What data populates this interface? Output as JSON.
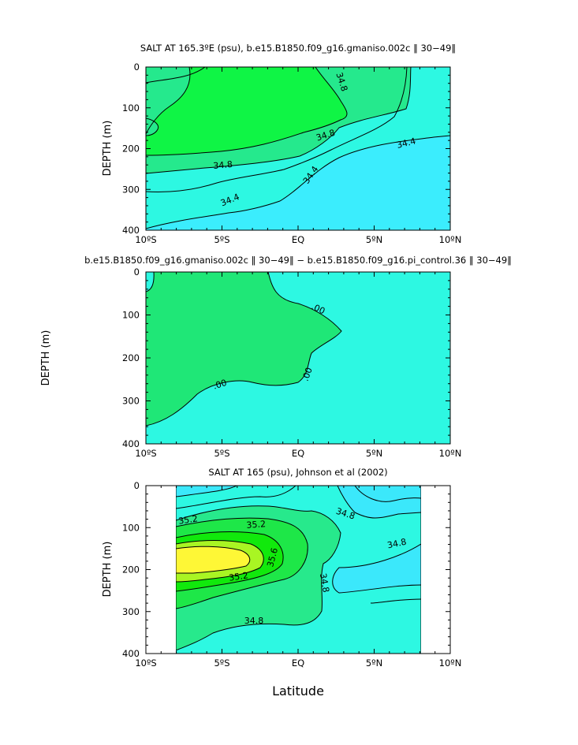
{
  "chart_data": [
    {
      "type": "contour",
      "title": "SALT AT 165.3ºE (psu), b.e15.B1850.f09_g16.gmaniso.002c ‖ 30−49‖",
      "ylabel": "DEPTH  (m)",
      "xlabel": "",
      "x_ticks": [
        "10ºS",
        "5ºS",
        "EQ",
        "5ºN",
        "10ºN"
      ],
      "y_ticks": [
        "0",
        "100",
        "200",
        "300",
        "400"
      ],
      "xlim": [
        -10,
        10
      ],
      "ylim": [
        400,
        0
      ],
      "contour_labels": [
        "34.8",
        "34.8",
        "34.8",
        "34.4",
        "34.4",
        "34.4"
      ],
      "fill_colors": [
        "#3bedfd",
        "#2df8e2",
        "#25e98d",
        "#0ff545"
      ]
    },
    {
      "type": "contour",
      "title": "b.e15.B1850.f09_g16.gmaniso.002c ‖ 30−49‖ − b.e15.B1850.f09_g16.pi_control.36 ‖ 30−49‖",
      "ylabel": "DEPTH  (m)",
      "xlabel": "",
      "x_ticks": [
        "10ºS",
        "5ºS",
        "EQ",
        "5ºN",
        "10ºN"
      ],
      "y_ticks": [
        "0",
        "100",
        "200",
        "300",
        "400"
      ],
      "xlim": [
        -10,
        10
      ],
      "ylim": [
        400,
        0
      ],
      "contour_labels": [
        ".00",
        ".00",
        ".00"
      ],
      "fill_colors": [
        "#2df8e2",
        "#1fe777"
      ]
    },
    {
      "type": "contour",
      "title": "SALT AT 165 (psu), Johnson et al (2002)",
      "ylabel": "DEPTH  (m)",
      "xlabel": "Latitude",
      "x_ticks": [
        "10ºS",
        "5ºS",
        "EQ",
        "5ºN",
        "10ºN"
      ],
      "y_ticks": [
        "0",
        "100",
        "200",
        "300",
        "400"
      ],
      "xlim": [
        -10,
        10
      ],
      "ylim": [
        400,
        0
      ],
      "data_xlim": [
        -8,
        8
      ],
      "contour_labels": [
        "35.2",
        "35.2",
        "35.2",
        "35.6",
        "34.8",
        "34.8",
        "34.8",
        "34.8"
      ],
      "fill_colors": [
        "#3be8fb",
        "#2df8e2",
        "#27e98c",
        "#1ee748",
        "#11e90c",
        "#a9f523",
        "#fef736"
      ]
    }
  ]
}
